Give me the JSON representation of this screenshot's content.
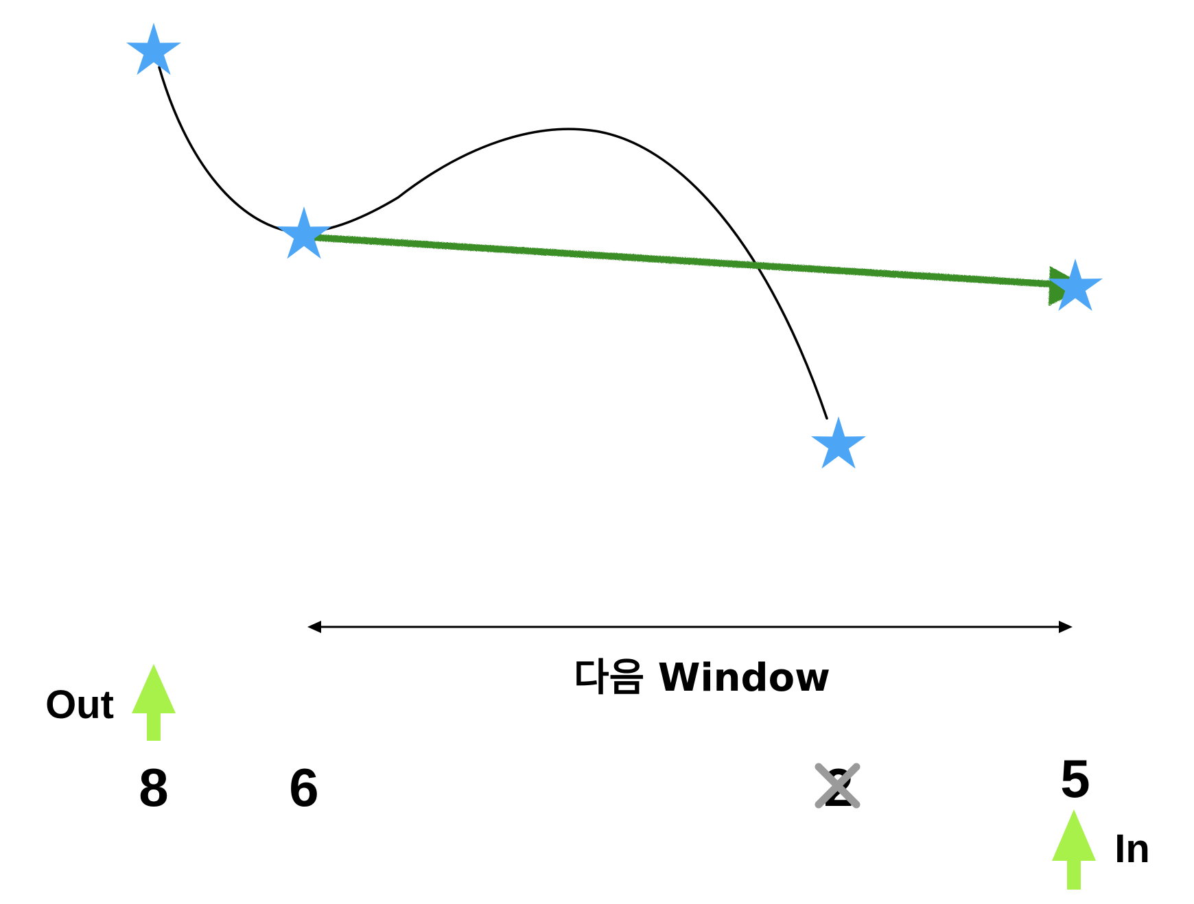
{
  "labels": {
    "out": "Out",
    "in": "In",
    "window": "다음 Window"
  },
  "values": {
    "v1": "8",
    "v2": "6",
    "v3": "2",
    "v4": "5"
  },
  "colors": {
    "star": "#4DA6F5",
    "curve": "#000000",
    "trend_arrow": "#3A8E28",
    "io_arrow": "#A8F04A",
    "cross": "#9A9A9A"
  },
  "icons": {
    "points": "star-icon",
    "removed": "cross-icon",
    "io": "up-arrow-icon"
  }
}
